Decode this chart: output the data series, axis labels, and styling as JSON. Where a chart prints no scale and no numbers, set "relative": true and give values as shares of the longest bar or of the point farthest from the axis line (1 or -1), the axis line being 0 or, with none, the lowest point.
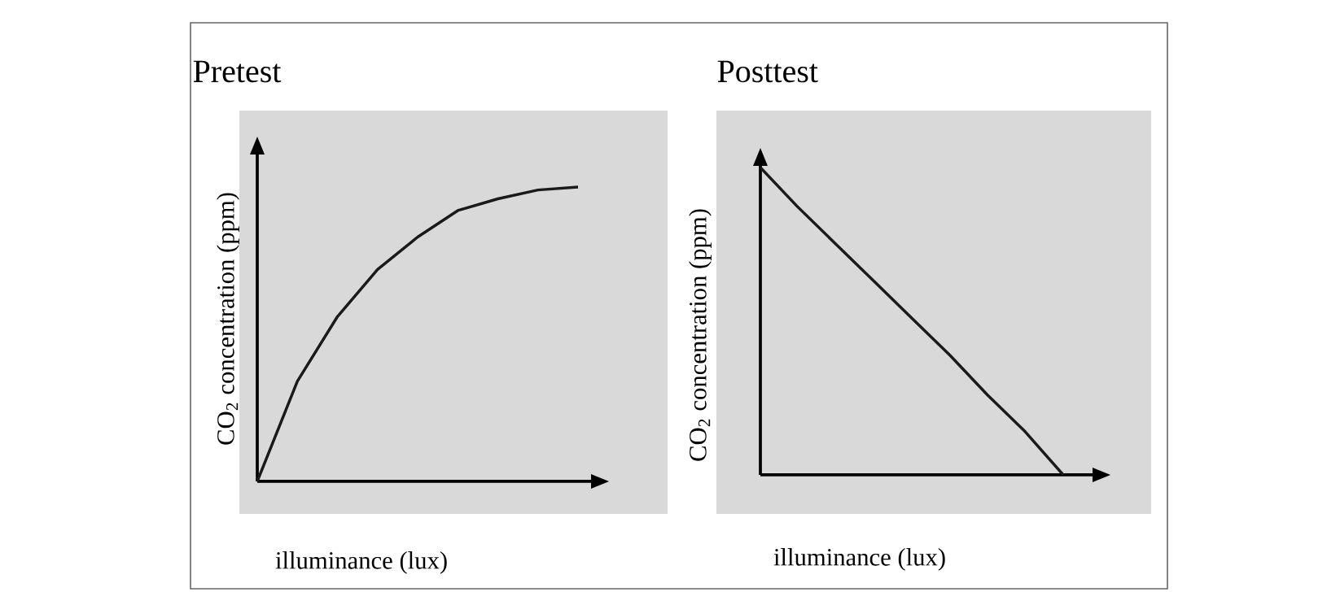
{
  "chart_data": [
    {
      "type": "line",
      "title": "Pretest",
      "xlabel": "illuminance (lux)",
      "ylabel": "CO$_{2}$ concentration (ppm)",
      "relative": true,
      "categories": [
        null,
        null,
        null,
        null,
        null,
        null,
        null,
        null,
        null
      ],
      "values": [
        0,
        0.34,
        0.56,
        0.72,
        0.83,
        0.92,
        0.96,
        0.99,
        1
      ],
      "color": "#1a1a1a"
    },
    {
      "type": "line",
      "title": "Posttest",
      "xlabel": "illuminance (lux)",
      "ylabel": "CO$_{2}$ concentration (ppm)",
      "relative": true,
      "categories": [
        null,
        null,
        null,
        null,
        null,
        null,
        null,
        null,
        null
      ],
      "values": [
        1,
        0.87,
        0.75,
        0.63,
        0.51,
        0.39,
        0.26,
        0.14,
        0
      ],
      "color": "#1a1a1a"
    }
  ]
}
